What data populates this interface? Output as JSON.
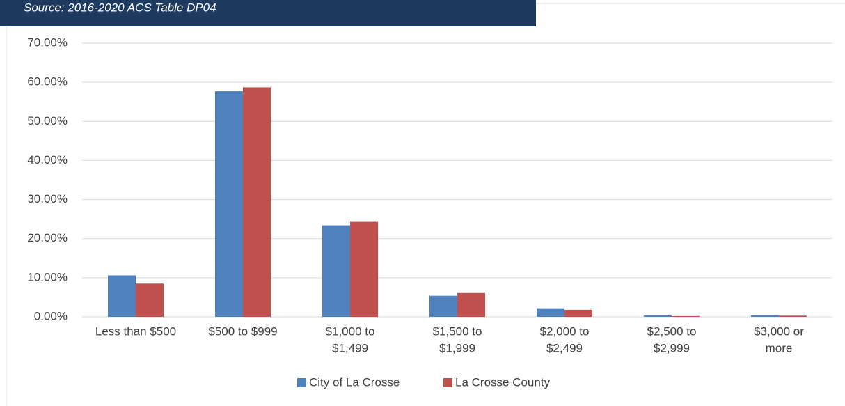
{
  "chart_data": {
    "type": "bar",
    "subtitle": "Source: 2016-2020 ACS Table DP04",
    "categories": [
      [
        "Less than $500"
      ],
      [
        "$500 to $999"
      ],
      [
        "$1,000 to",
        "$1,499"
      ],
      [
        "$1,500 to",
        "$1,999"
      ],
      [
        "$2,000 to",
        "$2,499"
      ],
      [
        "$2,500 to",
        "$2,999"
      ],
      [
        "$3,000 or",
        "more"
      ]
    ],
    "series": [
      {
        "name": "City of La Crosse",
        "color": "#4f81bd",
        "values": [
          10.6,
          57.7,
          23.4,
          5.4,
          2.2,
          0.4,
          0.4
        ]
      },
      {
        "name": "La Crosse County",
        "color": "#c0504d",
        "values": [
          8.5,
          58.7,
          24.3,
          6.1,
          1.8,
          0.2,
          0.3
        ]
      }
    ],
    "ylim": [
      0,
      70
    ],
    "yticks": [
      {
        "value": 0,
        "label": "0.00%"
      },
      {
        "value": 10,
        "label": "10.00%"
      },
      {
        "value": 20,
        "label": "20.00%"
      },
      {
        "value": 30,
        "label": "30.00%"
      },
      {
        "value": 40,
        "label": "40.00%"
      },
      {
        "value": 50,
        "label": "50.00%"
      },
      {
        "value": 60,
        "label": "60.00%"
      },
      {
        "value": 70,
        "label": "70.00%"
      }
    ],
    "grid": true,
    "legend": "bottom"
  }
}
